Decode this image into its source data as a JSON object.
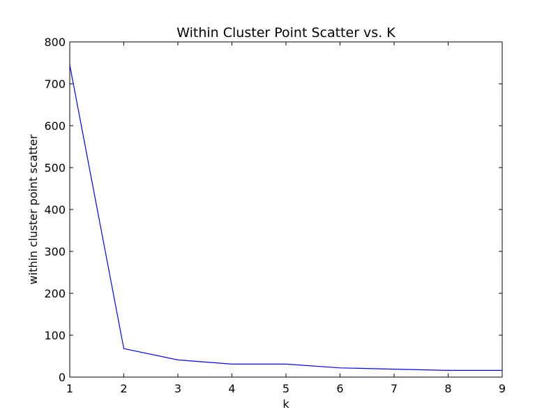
{
  "chart_data": {
    "type": "line",
    "title": "Within Cluster Point Scatter vs. K",
    "xlabel": "k",
    "ylabel": "within cluster point scatter",
    "xlim": [
      1,
      9
    ],
    "ylim": [
      0,
      800
    ],
    "xticks": [
      "1",
      "2",
      "3",
      "4",
      "5",
      "6",
      "7",
      "8",
      "9"
    ],
    "yticks": [
      "0",
      "100",
      "200",
      "300",
      "400",
      "500",
      "600",
      "700",
      "800"
    ],
    "grid": false,
    "legend": "none",
    "series": [
      {
        "color": "#0000ff",
        "x": [
          1,
          2,
          3,
          4,
          5,
          6,
          7,
          8,
          9
        ],
        "y": [
          745,
          68,
          41,
          31,
          31,
          22,
          19,
          16,
          16
        ]
      }
    ]
  }
}
